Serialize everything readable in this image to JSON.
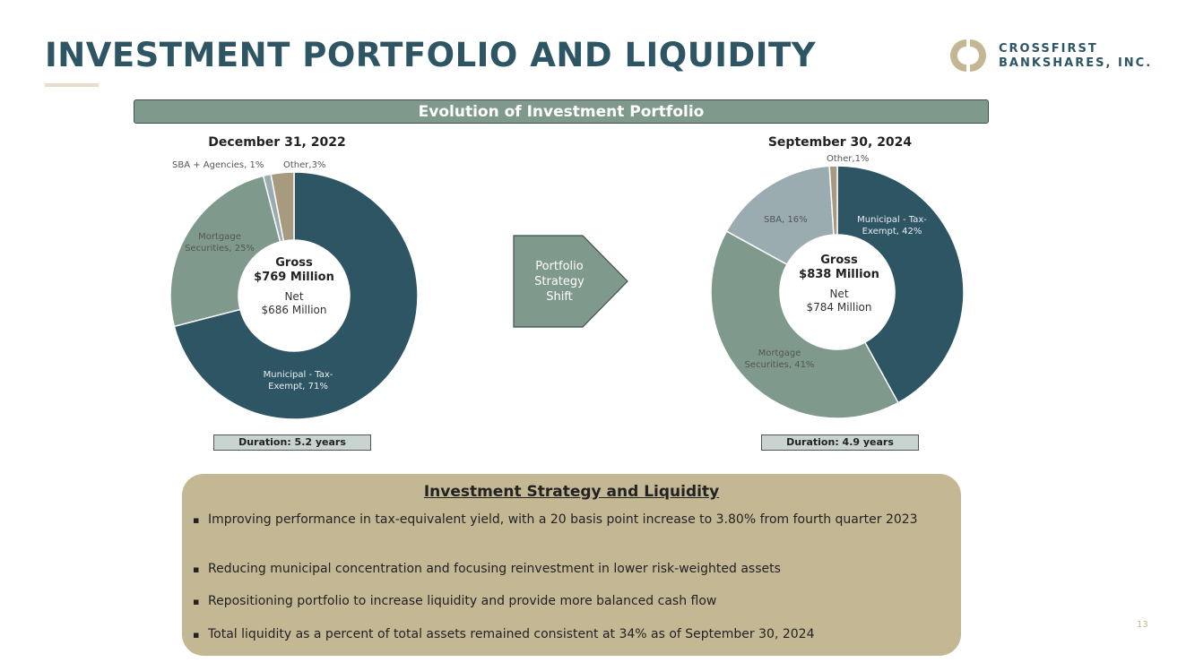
{
  "title": "INVESTMENT PORTFOLIO AND LIQUIDITY",
  "logo": {
    "line1": "CROSSFIRST",
    "line2": "BANKSHARES, INC."
  },
  "banner": "Evolution of Investment Portfolio",
  "arrow": "Portfolio Strategy Shift",
  "colors": {
    "municipal": "#2e5564",
    "mortgage": "#7f9a8c",
    "sba": "#9aacb0",
    "other": "#a89a7e"
  },
  "chart_data": [
    {
      "type": "pie",
      "title": "December 31, 2022",
      "categories": [
        "Municipal - Tax-Exempt",
        "Mortgage Securities",
        "SBA + Agencies",
        "Other"
      ],
      "values": [
        71,
        25,
        1,
        3
      ],
      "labels": [
        "Municipal - Tax-Exempt, 71%",
        "Mortgage Securities, 25%",
        "SBA + Agencies, 1%",
        "Other,3%"
      ],
      "center": {
        "gross": "Gross",
        "gross_value": "$769 Million",
        "net": "Net",
        "net_value": "$686 Million"
      },
      "duration": "Duration: 5.2 years"
    },
    {
      "type": "pie",
      "title": "September 30, 2024",
      "categories": [
        "Municipal - Tax-Exempt",
        "Mortgage Securities",
        "SBA",
        "Other"
      ],
      "values": [
        42,
        41,
        16,
        1
      ],
      "labels": [
        "Municipal - Tax-Exempt, 42%",
        "Mortgage Securities, 41%",
        "SBA, 16%",
        "Other,1%"
      ],
      "center": {
        "gross": "Gross",
        "gross_value": "$838 Million",
        "net": "Net",
        "net_value": "$784 Million"
      },
      "duration": "Duration: 4.9 years"
    }
  ],
  "strategy": {
    "title": "Investment Strategy and Liquidity",
    "bullets": [
      "Improving performance in tax-equivalent yield, with a 20 basis point increase to 3.80% from fourth quarter 2023",
      "Reducing municipal concentration and focusing reinvestment in lower risk-weighted assets",
      "Repositioning portfolio to increase liquidity and provide more balanced cash flow",
      "Total liquidity as a percent of total assets remained consistent at 34% as of September 30, 2024"
    ]
  },
  "page_number": "13"
}
